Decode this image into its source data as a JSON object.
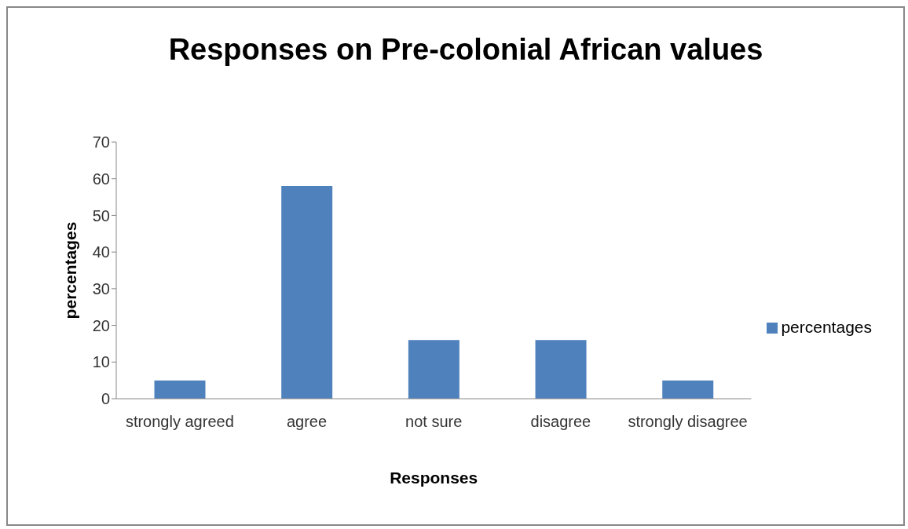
{
  "chart_data": {
    "type": "bar",
    "title": "Responses on Pre-colonial African values",
    "xlabel": "Responses",
    "ylabel": "percentages",
    "categories": [
      "strongly agreed",
      "agree",
      "not sure",
      "disagree",
      "strongly disagree"
    ],
    "series": [
      {
        "name": "percentages",
        "color": "#4f81bd",
        "values": [
          5,
          58,
          16,
          16,
          5
        ]
      }
    ],
    "ylim": [
      0,
      70
    ],
    "yticks": [
      0,
      10,
      20,
      30,
      40,
      50,
      60,
      70
    ],
    "grid": false,
    "legend": "right"
  }
}
